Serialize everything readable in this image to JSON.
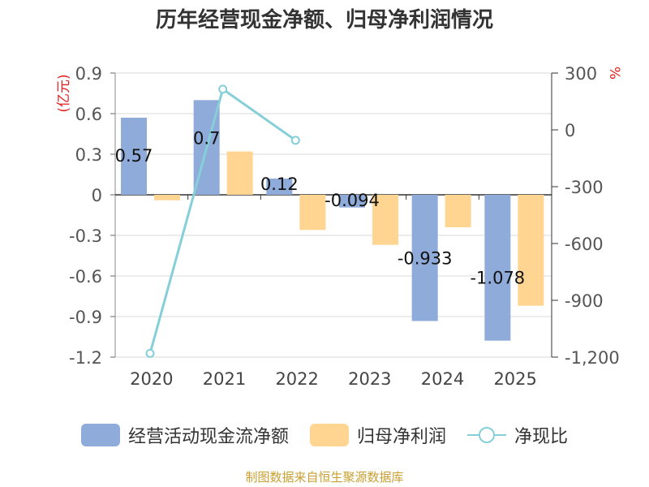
{
  "title": "历年经营现金净额、归母净利润情况",
  "source": "制图数据来自恒生聚源数据库",
  "colors": {
    "cash": "#8eabd9",
    "profit": "#ffd591",
    "ratio": "#86cfd8",
    "unit": "#e02020"
  },
  "chart_data": {
    "type": "bar+line",
    "categories": [
      "2020",
      "2021",
      "2022",
      "2023",
      "2024",
      "2025"
    ],
    "left_axis": {
      "unit": "(亿元)",
      "range": [
        -1.2,
        0.9
      ],
      "ticks": [
        0.9,
        0.6,
        0.3,
        0,
        -0.3,
        -0.6,
        -0.9,
        -1.2
      ],
      "tick_labels": [
        "0.9",
        "0.6",
        "0.3",
        "0",
        "-0.3",
        "-0.6",
        "-0.9",
        "-1.2"
      ]
    },
    "right_axis": {
      "unit": "%",
      "range": [
        -1200,
        300
      ],
      "ticks": [
        300,
        0,
        -300,
        -600,
        -900,
        -1200
      ],
      "tick_labels": [
        "300",
        "0",
        "-300",
        "-600",
        "-900",
        "-1,200"
      ]
    },
    "series": [
      {
        "name": "经营活动现金流净额",
        "type": "bar",
        "axis": "left",
        "values": [
          0.57,
          0.7,
          0.12,
          -0.094,
          -0.933,
          -1.078
        ],
        "labels": [
          "0.57",
          "0.7",
          "0.12",
          "-0.094",
          "-0.933",
          "-1.078"
        ]
      },
      {
        "name": "归母净利润",
        "type": "bar",
        "axis": "left",
        "values": [
          -0.04,
          0.32,
          -0.26,
          -0.37,
          -0.24,
          -0.82
        ]
      },
      {
        "name": "净现比",
        "type": "line",
        "axis": "right",
        "values": [
          -1180,
          215,
          -55,
          null,
          null,
          null
        ]
      }
    ]
  }
}
